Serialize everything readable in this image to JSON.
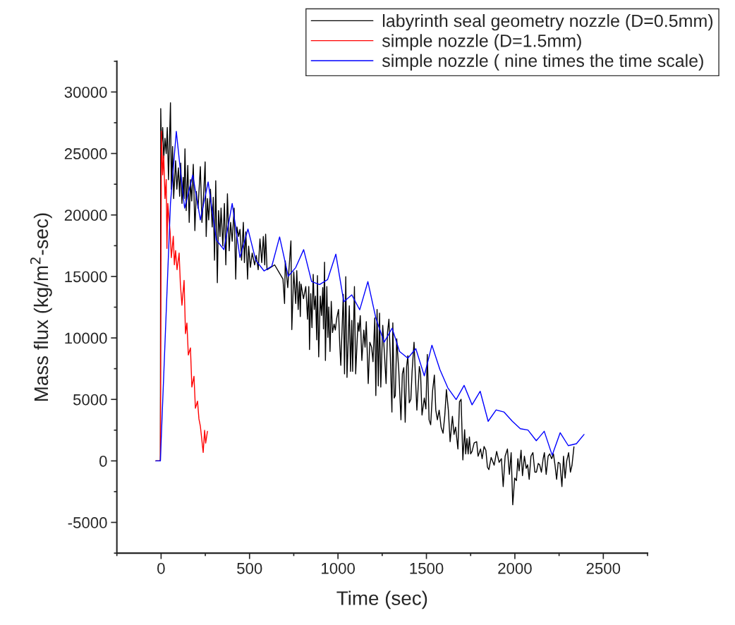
{
  "chart_data": {
    "type": "line",
    "xlabel": "Time (sec)",
    "ylabel": "Mass flux (kg/m$^{2}$-sec)",
    "xlim": [
      -250,
      2750
    ],
    "xticks": [
      0,
      500,
      1000,
      1500,
      2000,
      2500
    ],
    "ylim": [
      -7500,
      32500
    ],
    "yticks": [
      -5000,
      0,
      5000,
      10000,
      15000,
      20000,
      25000,
      30000
    ],
    "grid": false,
    "legend": "top right",
    "marker": "none",
    "line_style": "solid",
    "series": [
      {
        "name": "labyrinth seal geometry nozzle (D=0.5mm)",
        "color": "#000000",
        "x": [
          -30,
          -4,
          -2,
          2,
          9,
          15,
          22,
          29,
          35,
          42,
          53,
          58,
          65,
          71,
          82,
          89,
          98,
          105,
          111,
          118,
          125,
          130,
          135,
          142,
          151,
          159,
          166,
          173,
          182,
          191,
          199,
          209,
          222,
          231,
          242,
          249,
          255,
          262,
          269,
          279,
          289,
          295,
          302,
          309,
          318,
          325,
          333,
          339,
          349,
          358,
          366,
          375,
          385,
          393,
          402,
          413,
          422,
          429,
          438,
          446,
          455,
          465,
          471,
          479,
          489,
          495,
          505,
          515,
          529,
          538,
          549,
          559,
          569,
          578,
          586,
          591,
          599,
          642,
          689,
          698,
          702,
          716,
          734,
          739,
          750,
          761,
          767,
          775,
          782,
          787,
          791,
          805,
          818,
          828,
          835,
          839,
          846,
          853,
          860,
          866,
          873,
          880,
          884,
          891,
          900,
          907,
          914,
          918,
          924,
          929,
          937,
          943,
          948,
          955,
          962,
          969,
          978,
          985,
          993,
          1003,
          1010,
          1016,
          1030,
          1037,
          1044,
          1051,
          1064,
          1071,
          1078,
          1083,
          1093,
          1100,
          1113,
          1119,
          1126,
          1135,
          1146,
          1153,
          1160,
          1171,
          1180,
          1190,
          1198,
          1208,
          1214,
          1221,
          1228,
          1235,
          1242,
          1253,
          1262,
          1272,
          1280,
          1288,
          1296,
          1305,
          1310,
          1318,
          1324,
          1332,
          1344,
          1356,
          1364,
          1372,
          1380,
          1388,
          1395,
          1403,
          1412,
          1419,
          1430,
          1440,
          1446,
          1460,
          1467,
          1475,
          1488,
          1497,
          1505,
          1515,
          1524,
          1535,
          1545,
          1553,
          1562,
          1572,
          1583,
          1594,
          1604,
          1613,
          1624,
          1634,
          1647,
          1656,
          1665,
          1678,
          1687,
          1696,
          1706,
          1716,
          1722,
          1729,
          1736,
          1743,
          1750,
          1758,
          1770,
          1784,
          1792,
          1806,
          1815,
          1826,
          1836,
          1845,
          1853,
          1866,
          1883,
          1897,
          1911,
          1924,
          1934,
          1945,
          1958,
          1969,
          1979,
          1988,
          1999,
          2009,
          2017,
          2024,
          2035,
          2043,
          2054,
          2064,
          2072,
          2081,
          2091,
          2102,
          2113,
          2122,
          2132,
          2140,
          2150,
          2160,
          2167,
          2177,
          2188,
          2197,
          2208,
          2218,
          2227,
          2236,
          2245,
          2255,
          2266,
          2275,
          2284,
          2293,
          2304,
          2314,
          2323,
          2334
        ],
        "values": [
          0,
          0,
          28650,
          25380,
          27110,
          24610,
          26240,
          24990,
          27110,
          22870,
          29130,
          22100,
          25570,
          21330,
          24410,
          22100,
          23830,
          21520,
          24220,
          20940,
          23060,
          21330,
          25380,
          20360,
          24030,
          19400,
          22870,
          21140,
          24120,
          18730,
          21910,
          20560,
          23930,
          19400,
          22100,
          24320,
          18250,
          21330,
          19600,
          22100,
          19020,
          21430,
          16320,
          22780,
          14490,
          20360,
          18250,
          20560,
          17470,
          20940,
          15940,
          21720,
          17090,
          19400,
          17860,
          20560,
          14780,
          19020,
          18250,
          18830,
          16320,
          19400,
          16130,
          18630,
          14780,
          17470,
          15740,
          16900,
          15940,
          16710,
          15550,
          18050,
          16130,
          18250,
          15940,
          18440,
          15550,
          15940,
          14780,
          12800,
          16260,
          14090,
          17900,
          10680,
          15370,
          12800,
          15470,
          12310,
          14580,
          11740,
          14380,
          13200,
          14180,
          11520,
          14180,
          9060,
          13600,
          10830,
          15170,
          12310,
          13400,
          9840,
          15070,
          8460,
          13400,
          11820,
          14090,
          10730,
          16160,
          8170,
          14180,
          10040,
          12510,
          8900,
          12970,
          10440,
          11130,
          10640,
          11620,
          12310,
          9450,
          7770,
          13550,
          7080,
          14980,
          6790,
          12610,
          7280,
          11420,
          7280,
          14180,
          7080,
          11230,
          10540,
          11820,
          8170,
          10640,
          9250,
          11320,
          6290,
          9650,
          9250,
          8070,
          11620,
          5310,
          12310,
          6100,
          12020,
          6000,
          11030,
          8860,
          6290,
          10440,
          11520,
          8460,
          3970,
          11230,
          5110,
          5310,
          9940,
          7280,
          3340,
          7080,
          7580,
          3140,
          7680,
          8560,
          4720,
          5010,
          7280,
          9650,
          6100,
          4130,
          7680,
          7080,
          3730,
          5110,
          4230,
          8660,
          3340,
          2940,
          5710,
          6980,
          4130,
          3340,
          4130,
          2750,
          2250,
          3730,
          5800,
          4130,
          1560,
          3630,
          2150,
          2750,
          970,
          4820,
          5010,
          80,
          2540,
          570,
          1820,
          570,
          1950,
          570,
          770,
          1460,
          1560,
          380,
          970,
          180,
          1170,
          870,
          -510,
          -710,
          280,
          -350,
          770,
          -120,
          180,
          -2090,
          380,
          970,
          -1100,
          670,
          -3570,
          -1400,
          -1600,
          180,
          -810,
          870,
          -1200,
          380,
          -610,
          -310,
          -1500,
          380,
          670,
          -910,
          -910,
          -210,
          -310,
          -910,
          180,
          670,
          -1100,
          380,
          570,
          180,
          570,
          -350,
          -1500,
          -120,
          -210,
          -2090,
          380,
          -1400,
          -20,
          670,
          -910,
          -350,
          1150
        ]
      },
      {
        "name": "simple nozzle (D=1.5mm)",
        "color": "#ff0000",
        "x": [
          -30,
          -4,
          2,
          9,
          15,
          22,
          29,
          33,
          38,
          45,
          51,
          58,
          69,
          75,
          82,
          90,
          102,
          109,
          118,
          130,
          138,
          146,
          154,
          166,
          174,
          186,
          194,
          206,
          214,
          222,
          238,
          246,
          252,
          262
        ],
        "values": [
          0,
          0,
          26820,
          23260,
          24800,
          21330,
          22890,
          17280,
          20940,
          19600,
          18630,
          16530,
          18270,
          15950,
          17110,
          15550,
          16900,
          14390,
          12660,
          14680,
          10350,
          11210,
          8610,
          9190,
          6010,
          6880,
          4280,
          4860,
          3410,
          2830,
          690,
          2490,
          1450,
          2400
        ]
      },
      {
        "name": "simple nozzle ( nine times the time scale)",
        "color": "#0000ff",
        "x": [
          -30,
          -4,
          53,
          86,
          109,
          133,
          179,
          222,
          266,
          313,
          355,
          402,
          446,
          491,
          535,
          582,
          626,
          670,
          719,
          761,
          806,
          851,
          896,
          941,
          988,
          1033,
          1078,
          1123,
          1169,
          1214,
          1261,
          1306,
          1348,
          1395,
          1440,
          1488,
          1531,
          1576,
          1621,
          1668,
          1713,
          1758,
          1804,
          1849,
          1894,
          1939,
          1986,
          2031,
          2074,
          2121,
          2166,
          2211,
          2256,
          2302,
          2348,
          2391
        ],
        "values": [
          0,
          0,
          20940,
          26800,
          23640,
          20560,
          23250,
          19600,
          22690,
          17960,
          17180,
          20940,
          16550,
          18860,
          16320,
          15450,
          15840,
          18210,
          15020,
          15720,
          17180,
          14580,
          14340,
          14740,
          16810,
          12940,
          13500,
          12290,
          14580,
          11620,
          9650,
          10790,
          8900,
          8350,
          9130,
          6920,
          9410,
          7440,
          5940,
          4990,
          6140,
          4560,
          5660,
          3220,
          4140,
          3970,
          3220,
          2620,
          2510,
          1640,
          2410,
          460,
          2290,
          1240,
          1400,
          2150
        ]
      }
    ]
  }
}
